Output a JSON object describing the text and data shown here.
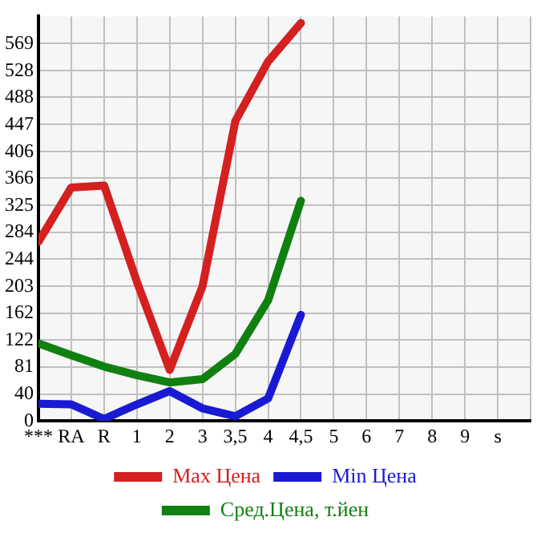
{
  "chart_data": {
    "type": "line",
    "categories": [
      "***",
      "RA",
      "R",
      "1",
      "2",
      "3",
      "3,5",
      "4",
      "4,5",
      "5",
      "6",
      "7",
      "8",
      "9",
      "s"
    ],
    "series": [
      {
        "name": "Max Цена",
        "color": "#d42020",
        "values": [
          270,
          352,
          355,
          210,
          77,
          203,
          452,
          542,
          600,
          null,
          null,
          null,
          null,
          null,
          null
        ]
      },
      {
        "name": "Min Цена",
        "color": "#1a1ad4",
        "values": [
          26,
          25,
          3,
          25,
          45,
          19,
          7,
          34,
          160,
          null,
          null,
          null,
          null,
          null,
          null
        ]
      },
      {
        "name": "Сред.Цена, т.йен",
        "color": "#108010",
        "values": [
          117,
          99,
          82,
          69,
          58,
          63,
          101,
          182,
          332,
          null,
          null,
          null,
          null,
          null,
          null
        ]
      }
    ],
    "ylim": [
      0,
      610
    ],
    "yticks": [
      0,
      40,
      81,
      122,
      162,
      203,
      244,
      284,
      325,
      366,
      406,
      447,
      488,
      528,
      569
    ],
    "grid": true,
    "legend": "bottom",
    "marker": "none",
    "line_style": "solid"
  }
}
